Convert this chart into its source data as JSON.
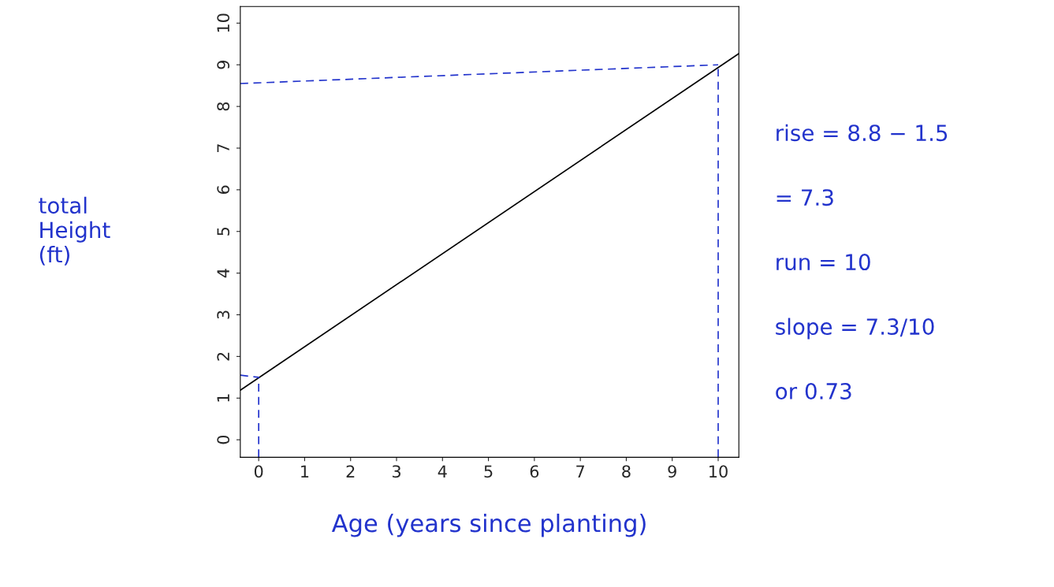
{
  "chart_data": {
    "type": "line",
    "xlabel": "Age (years since planting)",
    "ylabel": "total Height (ft)",
    "xlim": [
      -0.4,
      10.45
    ],
    "ylim": [
      -0.42,
      10.4
    ],
    "xticks": [
      0,
      1,
      2,
      3,
      4,
      5,
      6,
      7,
      8,
      9,
      10
    ],
    "yticks": [
      0,
      1,
      2,
      3,
      4,
      5,
      6,
      7,
      8,
      9,
      10
    ],
    "grid": false,
    "legend": false,
    "marker": "none",
    "series": [
      {
        "color": "#000000",
        "line_style": "solid",
        "x": [
          -0.4,
          10.45
        ],
        "values": [
          1.19,
          9.27
        ]
      },
      {
        "color": "#2233cc",
        "line_style": "dashed",
        "x": [
          -0.4,
          10
        ],
        "values": [
          8.55,
          9.0
        ]
      },
      {
        "color": "#2233cc",
        "line_style": "dashed",
        "x": [
          10,
          10
        ],
        "values": [
          -0.42,
          8.9
        ]
      },
      {
        "color": "#2233cc",
        "line_style": "dashed",
        "x": [
          -0.4,
          0
        ],
        "values": [
          1.55,
          1.5
        ]
      },
      {
        "color": "#2233cc",
        "line_style": "dashed",
        "x": [
          0,
          0
        ],
        "values": [
          -0.42,
          1.5
        ]
      }
    ],
    "annotations": [
      "rise = 8.8 − 1.5",
      "= 7.3",
      "run = 10",
      "slope = 7.3/10",
      "or 0.73"
    ]
  }
}
